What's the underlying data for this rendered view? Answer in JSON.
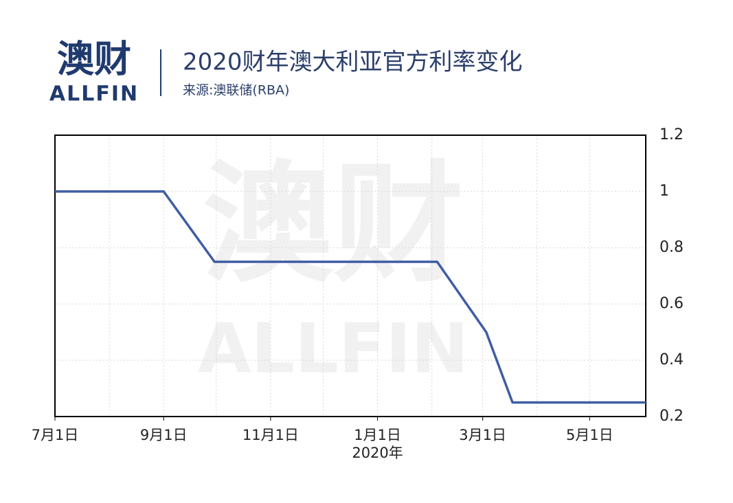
{
  "header": {
    "logo_cn": "澳财",
    "logo_en": "ALLFIN"
  },
  "watermark": {
    "cn": "澳财",
    "en": "ALLFIN"
  },
  "chart_data": {
    "type": "line",
    "title": "2020财年澳大利亚官方利率变化",
    "subtitle": "来源:澳联储(RBA)",
    "x": [
      "2019-07-01",
      "2019-09-01",
      "2019-09-30",
      "2020-02-04",
      "2020-03-03",
      "2020-03-18",
      "2020-06-02"
    ],
    "series": [
      {
        "name": "官方利率",
        "color": "#3f5da3",
        "values": [
          1,
          1,
          0.75,
          0.75,
          0.5,
          0.25,
          0.25
        ]
      }
    ],
    "xlim": [
      "2019-07-01",
      "2020-06-02"
    ],
    "xticks": [
      {
        "value": "2019-07-01",
        "label": "7月1日"
      },
      {
        "value": "2019-09-01",
        "label": "9月1日"
      },
      {
        "value": "2019-11-01",
        "label": "11月1日"
      },
      {
        "value": "2020-01-01",
        "label": "1月1日",
        "sublabel": "2020年"
      },
      {
        "value": "2020-03-01",
        "label": "3月1日"
      },
      {
        "value": "2020-05-01",
        "label": "5月1日"
      }
    ],
    "xgrid": [
      "2019-08-01",
      "2019-09-01",
      "2019-10-01",
      "2019-11-01",
      "2019-12-01",
      "2020-01-01",
      "2020-02-01",
      "2020-03-01",
      "2020-04-01",
      "2020-05-01"
    ],
    "ylim": [
      0.2,
      1.2
    ],
    "yticks": [
      0.2,
      0.4,
      0.6,
      0.8,
      1,
      1.2
    ],
    "y_axis_side": "right",
    "grid": true
  }
}
